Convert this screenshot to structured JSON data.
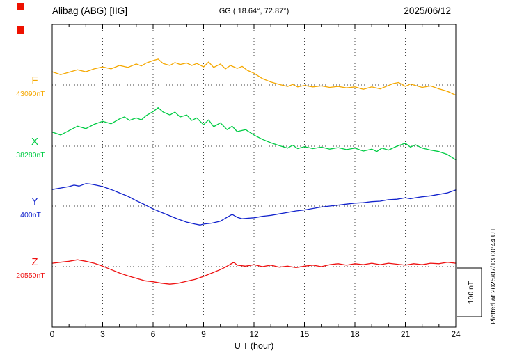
{
  "header": {
    "station": "Alibag (ABG)  [IIG]",
    "coords": "GG ( 18.64°, 72.87°)",
    "date": "2025/06/12"
  },
  "axis": {
    "xlabel": "U T (hour)"
  },
  "side": {
    "plotted": "Plotted at 2025/07/13 00:44 UT",
    "scale_label": "100 nT"
  },
  "decor": {
    "marker_color": "#ee1100"
  },
  "chart_data": {
    "type": "line",
    "title": "Alibag (ABG) [IIG] magnetogram 2025/06/12",
    "xlabel": "U T (hour)",
    "ylabel": "",
    "x_range": [
      0,
      24
    ],
    "x_ticks": [
      0,
      3,
      6,
      9,
      12,
      15,
      18,
      21,
      24
    ],
    "scale_nT_per_div": 100,
    "grid": "dotted vertical lines every 3 h; dotted horizontal baseline per component",
    "legend_position": "left-margin component labels",
    "series": [
      {
        "name": "F",
        "base_label": "43090nT",
        "baseline_nT": 43090,
        "color": "#f5a800",
        "points": [
          [
            0,
            27
          ],
          [
            0.5,
            21
          ],
          [
            1,
            26
          ],
          [
            1.5,
            31
          ],
          [
            2,
            27
          ],
          [
            2.5,
            33
          ],
          [
            3,
            37
          ],
          [
            3.5,
            33
          ],
          [
            4,
            40
          ],
          [
            4.5,
            36
          ],
          [
            5,
            43
          ],
          [
            5.3,
            39
          ],
          [
            5.6,
            45
          ],
          [
            6,
            50
          ],
          [
            6.3,
            53
          ],
          [
            6.6,
            44
          ],
          [
            7,
            40
          ],
          [
            7.3,
            46
          ],
          [
            7.6,
            42
          ],
          [
            8,
            45
          ],
          [
            8.3,
            40
          ],
          [
            8.6,
            44
          ],
          [
            9,
            37
          ],
          [
            9.3,
            47
          ],
          [
            9.6,
            36
          ],
          [
            10,
            43
          ],
          [
            10.3,
            33
          ],
          [
            10.6,
            40
          ],
          [
            11,
            34
          ],
          [
            11.3,
            38
          ],
          [
            11.6,
            30
          ],
          [
            12,
            24
          ],
          [
            12.5,
            13
          ],
          [
            13,
            6
          ],
          [
            13.5,
            1
          ],
          [
            14,
            -3
          ],
          [
            14.3,
            1
          ],
          [
            14.6,
            -4
          ],
          [
            15,
            -1
          ],
          [
            15.5,
            -4
          ],
          [
            16,
            -2
          ],
          [
            16.5,
            -5
          ],
          [
            17,
            -3
          ],
          [
            17.5,
            -6
          ],
          [
            18,
            -4
          ],
          [
            18.5,
            -9
          ],
          [
            19,
            -4
          ],
          [
            19.5,
            -8
          ],
          [
            20,
            -1
          ],
          [
            20.3,
            3
          ],
          [
            20.6,
            5
          ],
          [
            21,
            -3
          ],
          [
            21.3,
            2
          ],
          [
            21.6,
            -1
          ],
          [
            22,
            -5
          ],
          [
            22.5,
            -2
          ],
          [
            23,
            -8
          ],
          [
            23.5,
            -13
          ],
          [
            24,
            -21
          ]
        ]
      },
      {
        "name": "X",
        "base_label": "38280nT",
        "baseline_nT": 38280,
        "color": "#00cc44",
        "points": [
          [
            0,
            29
          ],
          [
            0.5,
            23
          ],
          [
            1,
            32
          ],
          [
            1.5,
            41
          ],
          [
            2,
            36
          ],
          [
            2.5,
            45
          ],
          [
            3,
            51
          ],
          [
            3.5,
            46
          ],
          [
            4,
            56
          ],
          [
            4.3,
            60
          ],
          [
            4.6,
            53
          ],
          [
            5,
            58
          ],
          [
            5.3,
            54
          ],
          [
            5.6,
            63
          ],
          [
            6,
            71
          ],
          [
            6.3,
            79
          ],
          [
            6.6,
            70
          ],
          [
            7,
            64
          ],
          [
            7.3,
            70
          ],
          [
            7.6,
            60
          ],
          [
            8,
            64
          ],
          [
            8.3,
            53
          ],
          [
            8.6,
            58
          ],
          [
            9,
            44
          ],
          [
            9.3,
            54
          ],
          [
            9.6,
            40
          ],
          [
            10,
            48
          ],
          [
            10.4,
            34
          ],
          [
            10.7,
            41
          ],
          [
            11,
            30
          ],
          [
            11.5,
            34
          ],
          [
            12,
            23
          ],
          [
            12.5,
            14
          ],
          [
            13,
            7
          ],
          [
            13.5,
            1
          ],
          [
            14,
            -4
          ],
          [
            14.3,
            2
          ],
          [
            14.6,
            -5
          ],
          [
            15,
            -1
          ],
          [
            15.5,
            -5
          ],
          [
            16,
            -2
          ],
          [
            16.5,
            -6
          ],
          [
            17,
            -3
          ],
          [
            17.5,
            -7
          ],
          [
            18,
            -4
          ],
          [
            18.5,
            -10
          ],
          [
            19,
            -6
          ],
          [
            19.3,
            -11
          ],
          [
            19.6,
            -4
          ],
          [
            20,
            -8
          ],
          [
            20.5,
            0
          ],
          [
            21,
            6
          ],
          [
            21.3,
            -2
          ],
          [
            21.6,
            3
          ],
          [
            22,
            -4
          ],
          [
            22.5,
            -8
          ],
          [
            23,
            -11
          ],
          [
            23.5,
            -17
          ],
          [
            24,
            -28
          ]
        ]
      },
      {
        "name": "Y",
        "base_label": "400nT",
        "baseline_nT": 400,
        "color": "#1122cc",
        "points": [
          [
            0,
            34
          ],
          [
            0.5,
            37
          ],
          [
            1,
            40
          ],
          [
            1.3,
            43
          ],
          [
            1.6,
            41
          ],
          [
            2,
            46
          ],
          [
            2.3,
            45
          ],
          [
            2.6,
            43
          ],
          [
            3,
            40
          ],
          [
            3.5,
            34
          ],
          [
            4,
            27
          ],
          [
            4.5,
            20
          ],
          [
            5,
            11
          ],
          [
            5.5,
            3
          ],
          [
            6,
            -6
          ],
          [
            6.5,
            -13
          ],
          [
            7,
            -20
          ],
          [
            7.5,
            -27
          ],
          [
            8,
            -33
          ],
          [
            8.5,
            -37
          ],
          [
            8.8,
            -39
          ],
          [
            9,
            -37
          ],
          [
            9.5,
            -35
          ],
          [
            10,
            -31
          ],
          [
            10.4,
            -23
          ],
          [
            10.7,
            -17
          ],
          [
            11,
            -23
          ],
          [
            11.3,
            -26
          ],
          [
            11.6,
            -25
          ],
          [
            12,
            -24
          ],
          [
            12.5,
            -21
          ],
          [
            13,
            -19
          ],
          [
            13.5,
            -16
          ],
          [
            14,
            -13
          ],
          [
            14.5,
            -10
          ],
          [
            15,
            -8
          ],
          [
            15.5,
            -5
          ],
          [
            16,
            -2
          ],
          [
            16.5,
            0
          ],
          [
            17,
            2
          ],
          [
            17.5,
            4
          ],
          [
            18,
            6
          ],
          [
            18.5,
            7
          ],
          [
            19,
            9
          ],
          [
            19.5,
            10
          ],
          [
            20,
            13
          ],
          [
            20.5,
            14
          ],
          [
            21,
            17
          ],
          [
            21.3,
            15
          ],
          [
            21.6,
            17
          ],
          [
            22,
            19
          ],
          [
            22.5,
            21
          ],
          [
            23,
            24
          ],
          [
            23.5,
            27
          ],
          [
            24,
            33
          ]
        ]
      },
      {
        "name": "Z",
        "base_label": "20550nT",
        "baseline_nT": 20550,
        "color": "#ee1111",
        "points": [
          [
            0,
            7
          ],
          [
            0.5,
            9
          ],
          [
            1,
            11
          ],
          [
            1.5,
            14
          ],
          [
            2,
            11
          ],
          [
            2.5,
            7
          ],
          [
            3,
            1
          ],
          [
            3.5,
            -6
          ],
          [
            4,
            -13
          ],
          [
            4.5,
            -19
          ],
          [
            5,
            -24
          ],
          [
            5.5,
            -29
          ],
          [
            6,
            -31
          ],
          [
            6.5,
            -34
          ],
          [
            7,
            -36
          ],
          [
            7.5,
            -34
          ],
          [
            8,
            -30
          ],
          [
            8.5,
            -26
          ],
          [
            9,
            -20
          ],
          [
            9.5,
            -13
          ],
          [
            10,
            -6
          ],
          [
            10.3,
            -1
          ],
          [
            10.6,
            5
          ],
          [
            10.8,
            9
          ],
          [
            11,
            3
          ],
          [
            11.5,
            1
          ],
          [
            12,
            4
          ],
          [
            12.5,
            0
          ],
          [
            13,
            3
          ],
          [
            13.5,
            -1
          ],
          [
            14,
            1
          ],
          [
            14.5,
            -2
          ],
          [
            15,
            1
          ],
          [
            15.5,
            3
          ],
          [
            16,
            0
          ],
          [
            16.5,
            4
          ],
          [
            17,
            6
          ],
          [
            17.5,
            3
          ],
          [
            18,
            6
          ],
          [
            18.5,
            4
          ],
          [
            19,
            7
          ],
          [
            19.5,
            4
          ],
          [
            20,
            7
          ],
          [
            20.5,
            5
          ],
          [
            21,
            3
          ],
          [
            21.5,
            6
          ],
          [
            22,
            4
          ],
          [
            22.5,
            7
          ],
          [
            23,
            6
          ],
          [
            23.5,
            9
          ],
          [
            24,
            7
          ]
        ]
      }
    ]
  }
}
